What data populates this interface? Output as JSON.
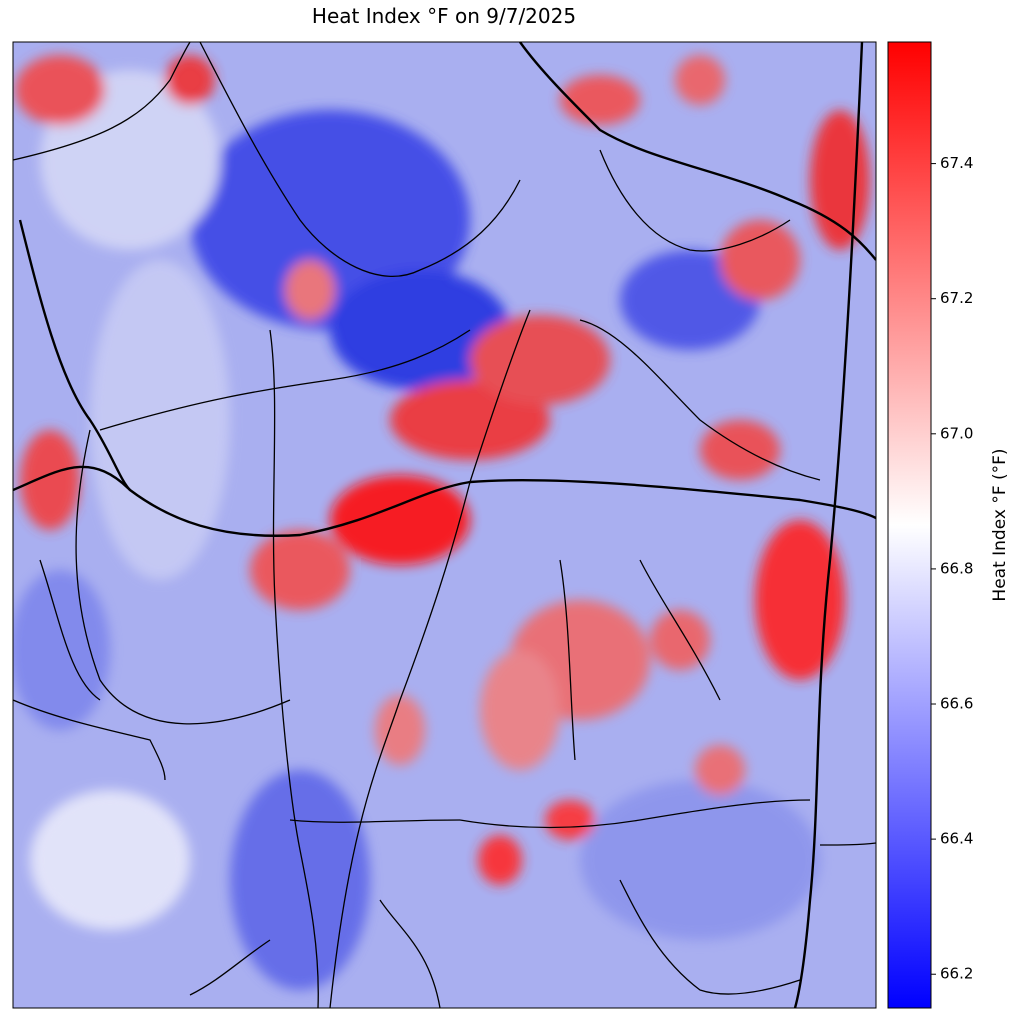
{
  "chart_data": {
    "type": "raster",
    "title": "Heat Index °F on 9/7/2025",
    "colorbar_label": "Heat Index °F (°F)",
    "clim": [
      66.15,
      67.58
    ],
    "colormap": [
      "#0000ff",
      "#ffffff",
      "#ff0000"
    ],
    "cticks": [
      66.2,
      66.4,
      66.6,
      66.8,
      {
        "value": 67,
        "label": "67.0"
      },
      67.2,
      67.4
    ]
  }
}
